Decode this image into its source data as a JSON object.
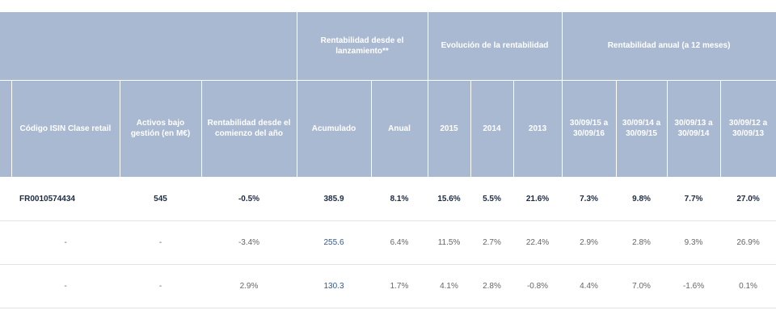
{
  "headers": {
    "rentabilidad_lanzamiento": "Rentabilidad desde el lanzamiento**",
    "evolucion": "Evolución de la rentabilidad",
    "rentabilidad_anual": "Rentabilidad anual (a 12 meses)",
    "columns": [
      "Código ISIN Clase retail",
      "Activos bajo gestión (en M€)",
      "Rentabilidad desde el comienzo del año",
      "Acumulado",
      "Anual",
      "2015",
      "2014",
      "2013",
      "30/09/15 a 30/09/16",
      "30/09/14 a 30/09/15",
      "30/09/13 a 30/09/14",
      "30/09/12 a 30/09/13"
    ]
  },
  "rows": [
    [
      "FR0010574434",
      "545",
      "-0.5%",
      "385.9",
      "8.1%",
      "15.6%",
      "5.5%",
      "21.6%",
      "7.3%",
      "9.8%",
      "7.7%",
      "27.0%"
    ],
    [
      "-",
      "-",
      "-3.4%",
      "255.6",
      "6.4%",
      "11.5%",
      "2.7%",
      "22.4%",
      "2.9%",
      "2.8%",
      "9.3%",
      "26.9%"
    ],
    [
      "-",
      "-",
      "2.9%",
      "130.3",
      "1.7%",
      "4.1%",
      "2.8%",
      "-0.8%",
      "4.4%",
      "7.0%",
      "-1.6%",
      "0.1%"
    ]
  ]
}
